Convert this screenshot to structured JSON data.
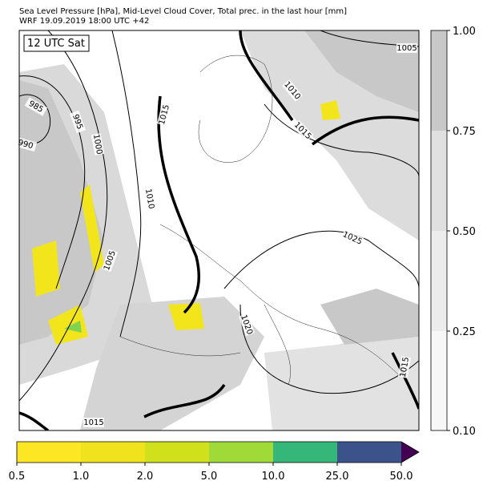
{
  "header": {
    "title": "Sea Level Pressure [hPa], Mid-Level Cloud Cover, Total prec. in the last hour [mm]",
    "subtitle": "WRF 19.09.2019 18:00 UTC +42"
  },
  "map": {
    "time_label": "12 UTC Sat",
    "contour_labels": [
      "985",
      "990",
      "995",
      "1000",
      "1005",
      "1010",
      "1015",
      "1015",
      "1010",
      "1005",
      "1025",
      "1020",
      "1015",
      "1015"
    ]
  },
  "cloud_colorbar": {
    "ticks": [
      "1.00",
      "0.75",
      "0.50",
      "0.25",
      "0.10"
    ]
  },
  "precip_colorbar": {
    "ticks": [
      "0.5",
      "1.0",
      "2.0",
      "5.0",
      "10.0",
      "25.0",
      "50.0"
    ]
  }
}
